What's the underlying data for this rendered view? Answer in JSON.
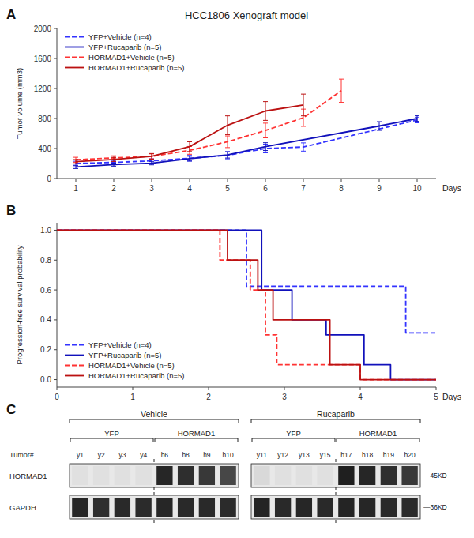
{
  "chart_data": [
    {
      "type": "line",
      "panel": "A",
      "title": "HCC1806 Xenograft model",
      "x_label": "Days",
      "y_label": "Tumor volume (mm3)",
      "xlim": [
        0.5,
        10.5
      ],
      "xticks": [
        1,
        2,
        3,
        4,
        5,
        6,
        7,
        8,
        9,
        10
      ],
      "ylim": [
        0,
        2000
      ],
      "yticks": [
        0,
        400,
        800,
        1200,
        1600,
        2000
      ],
      "legend": "upper left",
      "series": [
        {
          "name": "YFP+Vehicle (n=4)",
          "color": "#3333FF",
          "line_style": "dashed",
          "x": [
            1,
            2,
            3,
            4,
            5,
            6,
            7,
            10
          ],
          "values": [
            200,
            215,
            235,
            270,
            310,
            400,
            420,
            780
          ],
          "errors": [
            30,
            25,
            28,
            38,
            48,
            58,
            55,
            38
          ]
        },
        {
          "name": "YFP+Rucaparib (n=5)",
          "color": "#1111BB",
          "line_style": "solid",
          "x": [
            1,
            2,
            3,
            4,
            5,
            6,
            9,
            10
          ],
          "values": [
            155,
            185,
            205,
            265,
            315,
            425,
            700,
            800
          ],
          "errors": [
            22,
            20,
            23,
            32,
            42,
            52,
            58,
            38
          ]
        },
        {
          "name": "HORMAD1+Vehicle (n=5)",
          "color": "#FF3333",
          "line_style": "dashed",
          "x": [
            1,
            2,
            3,
            4,
            5,
            6,
            7,
            8
          ],
          "values": [
            250,
            275,
            295,
            375,
            490,
            640,
            810,
            1170
          ],
          "errors": [
            33,
            28,
            33,
            52,
            78,
            98,
            115,
            155
          ]
        },
        {
          "name": "HORMAD1+Rucaparib (n=5)",
          "color": "#BB1111",
          "line_style": "solid",
          "x": [
            1,
            2,
            3,
            4,
            5,
            6,
            7
          ],
          "values": [
            225,
            255,
            295,
            425,
            710,
            900,
            980
          ],
          "errors": [
            28,
            28,
            38,
            65,
            125,
            125,
            145
          ]
        }
      ]
    },
    {
      "type": "line",
      "panel": "B",
      "x_label": "Days",
      "y_label": "Progression-free survival probability",
      "xlim": [
        0,
        5
      ],
      "xticks": [
        0,
        1,
        2,
        3,
        4,
        5
      ],
      "ylim": [
        -0.05,
        1.05
      ],
      "yticks": [
        {
          "value": 0.0,
          "label": "0.0"
        },
        0.2,
        0.4,
        0.6,
        0.8,
        {
          "value": 1.0,
          "label": "1.0"
        }
      ],
      "legend": "lower left",
      "series": [
        {
          "name": "YFP+Vehicle (n=4)",
          "color": "#3333FF",
          "line_style": "dashed",
          "x": [
            0,
            2.5,
            2.5,
            4.6,
            4.6,
            5.0
          ],
          "values": [
            1.0,
            1.0,
            0.625,
            0.625,
            0.3125,
            0.3125
          ]
        },
        {
          "name": "YFP+Rucaparib (n=5)",
          "color": "#1111BB",
          "line_style": "solid",
          "x": [
            0,
            2.7,
            2.7,
            3.1,
            3.1,
            3.55,
            3.55,
            4.05,
            4.05,
            4.4,
            4.4,
            5.0
          ],
          "values": [
            1.0,
            1.0,
            0.6,
            0.6,
            0.4,
            0.4,
            0.3,
            0.3,
            0.1,
            0.1,
            0.0,
            0.0
          ]
        },
        {
          "name": "HORMAD1+Vehicle (n=5)",
          "color": "#FF3333",
          "line_style": "dashed",
          "x": [
            0,
            2.15,
            2.15,
            2.55,
            2.55,
            2.75,
            2.75,
            2.9,
            2.9,
            4.0,
            4.0,
            4.15,
            4.15,
            5.0
          ],
          "values": [
            1.0,
            1.0,
            0.8,
            0.8,
            0.6,
            0.6,
            0.3,
            0.3,
            0.1,
            0.1,
            0.0,
            0.0,
            0.0,
            0.0
          ]
        },
        {
          "name": "HORMAD1+Rucaparib (n=5)",
          "color": "#BB1111",
          "line_style": "solid",
          "x": [
            0,
            2.25,
            2.25,
            2.65,
            2.65,
            2.85,
            2.85,
            3.6,
            3.6,
            4.0,
            4.0,
            4.5,
            4.5,
            5.0
          ],
          "values": [
            1.0,
            1.0,
            0.8,
            0.8,
            0.6,
            0.6,
            0.4,
            0.4,
            0.1,
            0.1,
            0.0,
            0.0,
            0.0,
            0.0
          ]
        }
      ]
    },
    {
      "type": "blot",
      "panel": "C",
      "x_label": "Tumor#",
      "groups": [
        {
          "name": "Vehicle",
          "subgroups": [
            "YFP",
            "HORMAD1"
          ]
        },
        {
          "name": "Rucaparib",
          "subgroups": [
            "YFP",
            "HORMAD1"
          ]
        }
      ],
      "categories": [
        "y1",
        "y2",
        "y3",
        "y4",
        "h6",
        "h8",
        "h9",
        "h10",
        "y11",
        "y12",
        "y13",
        "y15",
        "h17",
        "h18",
        "h19",
        "h20"
      ],
      "series": [
        {
          "name": "HORMAD1",
          "annotation": "—45KD",
          "values": [
            0.88,
            0.88,
            0.88,
            0.88,
            0.15,
            0.18,
            0.22,
            0.28,
            0.85,
            0.88,
            0.88,
            0.88,
            0.12,
            0.15,
            0.18,
            0.22
          ]
        },
        {
          "name": "GAPDH",
          "annotation": "—36KD",
          "values": [
            0.15,
            0.18,
            0.16,
            0.17,
            0.15,
            0.16,
            0.16,
            0.17,
            0.14,
            0.16,
            0.15,
            0.16,
            0.14,
            0.15,
            0.16,
            0.17
          ]
        }
      ]
    }
  ]
}
